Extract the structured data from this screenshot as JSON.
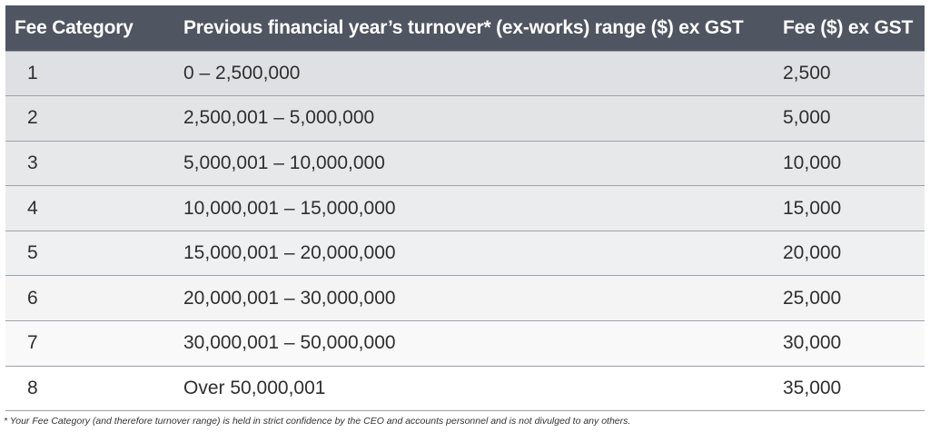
{
  "table": {
    "headers": {
      "category": "Fee Category",
      "turnover": "Previous financial year’s turnover* (ex-works) range ($) ex GST",
      "fee": "Fee ($) ex GST"
    },
    "rows": [
      {
        "category": "1",
        "range": "0 – 2,500,000",
        "fee": "2,500"
      },
      {
        "category": "2",
        "range": "2,500,001 – 5,000,000",
        "fee": "5,000"
      },
      {
        "category": "3",
        "range": "5,000,001 – 10,000,000",
        "fee": "10,000"
      },
      {
        "category": "4",
        "range": "10,000,001 – 15,000,000",
        "fee": "15,000"
      },
      {
        "category": "5",
        "range": "15,000,001 – 20,000,000",
        "fee": "20,000"
      },
      {
        "category": "6",
        "range": "20,000,001 – 30,000,000",
        "fee": "25,000"
      },
      {
        "category": "7",
        "range": "30,000,001 – 50,000,000",
        "fee": "30,000"
      },
      {
        "category": "8",
        "range": "Over 50,000,001",
        "fee": "35,000"
      }
    ]
  },
  "footnote": "* Your Fee Category (and therefore turnover range) is held in strict confidence by the CEO and accounts personnel and is not divulged to any others.",
  "colors": {
    "header_background": "#4f5561",
    "header_text": "#ffffff",
    "row_border": "#9da2aa",
    "body_text": "#2f2f2f"
  }
}
